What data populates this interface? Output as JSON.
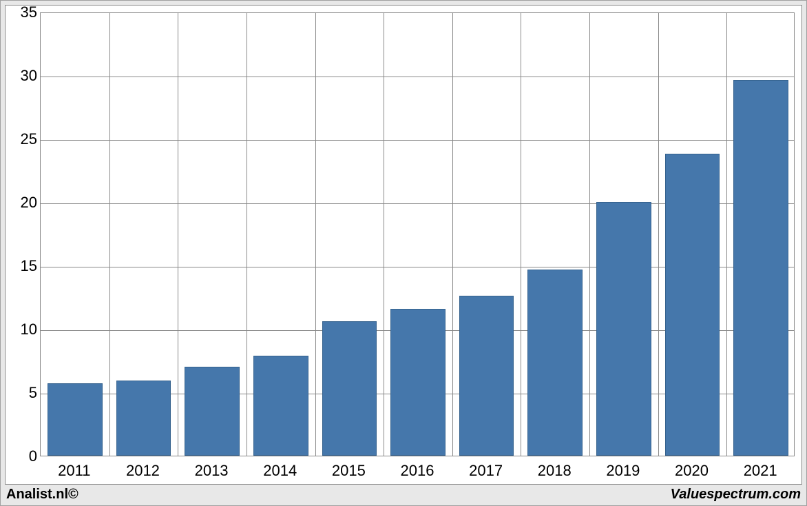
{
  "chart": {
    "type": "bar",
    "categories": [
      "2011",
      "2012",
      "2013",
      "2014",
      "2015",
      "2016",
      "2017",
      "2018",
      "2019",
      "2020",
      "2021"
    ],
    "values": [
      5.7,
      5.9,
      7.0,
      7.9,
      10.6,
      11.6,
      12.6,
      14.7,
      20.0,
      23.8,
      29.6
    ],
    "bar_color": "#4577ab",
    "bar_border_color": "#35628e",
    "bar_width_ratio": 0.8,
    "ylim": [
      0,
      35
    ],
    "yticks": [
      0,
      5,
      10,
      15,
      20,
      25,
      30,
      35
    ],
    "grid_color": "#888888",
    "background_color": "#ffffff",
    "outer_background_color": "#e8e8e8",
    "axis_fontsize": 22,
    "footer_fontsize": 20
  },
  "footer": {
    "left": "Analist.nl©",
    "right": "Valuespectrum.com"
  }
}
